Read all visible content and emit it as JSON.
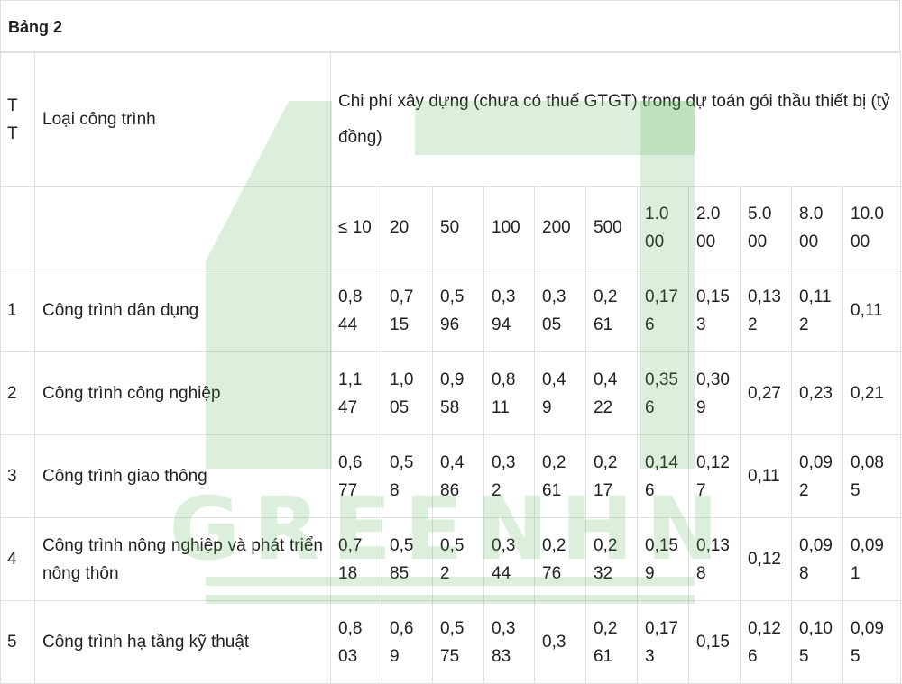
{
  "caption": "Bảng 2",
  "header": {
    "stt_label": "T T",
    "type_label": "Loại công trình",
    "cost_label": "Chi phí xây dựng (chưa có thuế GTGT) trong dự toán gói thầu thiết bị (tỷ",
    "cost_unit": "đồng)"
  },
  "thresholds": [
    "≤ 10",
    "20",
    "50",
    "100",
    "200",
    "500",
    "1.0 00",
    "2.0 00",
    "5.0 00",
    "8.0 00",
    "10.0 00"
  ],
  "rows": [
    {
      "stt": "1",
      "name": "Công trình dân dụng",
      "values": [
        "0,8 44",
        "0,7 15",
        "0,5 96",
        "0,3 94",
        "0,3 05",
        "0,2 61",
        "0,17 6",
        "0,15 3",
        "0,13 2",
        "0,11 2",
        "0,11"
      ]
    },
    {
      "stt": "2",
      "name": "Công trình công nghiệp",
      "values": [
        "1,1 47",
        "1,0 05",
        "0,9 58",
        "0,8 11",
        "0,4 9",
        "0,4 22",
        "0,35 6",
        "0,30 9",
        "0,27",
        "0,23",
        "0,21"
      ]
    },
    {
      "stt": "3",
      "name": "Công trình giao thông",
      "values": [
        "0,6 77",
        "0,5 8",
        "0,4 86",
        "0,3 2",
        "0,2 61",
        "0,2 17",
        "0,14 6",
        "0,12 7",
        "0,11",
        "0,09 2",
        "0,08 5"
      ]
    },
    {
      "stt": "4",
      "name": "Công trình nông nghiệp và phát triển nông thôn",
      "values": [
        "0,7 18",
        "0,5 85",
        "0,5 2",
        "0,3 44",
        "0,2 76",
        "0,2 32",
        "0,15 9",
        "0,13 8",
        "0,12",
        "0,09 8",
        "0,09 1"
      ]
    },
    {
      "stt": "5",
      "name": "Công trình hạ tầng kỹ thuật",
      "values": [
        "0,8 03",
        "0,6 9",
        "0,5 75",
        "0,3 83",
        "0,3",
        "0,2 61",
        "0,17 3",
        "0,15",
        "0,12 6",
        "0,10 5",
        "0,09 5"
      ]
    }
  ],
  "watermark": {
    "text": "GREENHN",
    "color": "#4caf50"
  }
}
